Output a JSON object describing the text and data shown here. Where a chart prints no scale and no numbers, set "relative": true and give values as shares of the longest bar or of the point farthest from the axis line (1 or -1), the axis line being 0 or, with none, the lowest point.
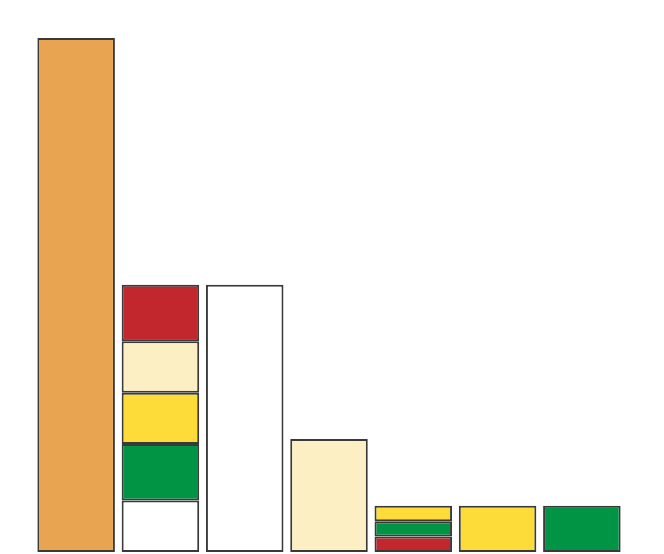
{
  "chart_data": {
    "type": "bar",
    "relative": true,
    "stacked": true,
    "categories": [
      null,
      null,
      null,
      null,
      null,
      null,
      null
    ],
    "series": [
      {
        "color": "#e8a450",
        "values": [
          1,
          null,
          null,
          null,
          null,
          null,
          null
        ]
      },
      {
        "color": "#ffffff",
        "values": [
          null,
          0.1,
          0.52,
          null,
          null,
          null,
          null
        ]
      },
      {
        "color": "#c1272d",
        "values": [
          null,
          null,
          null,
          null,
          0.03,
          null,
          null
        ]
      },
      {
        "color": "#009444",
        "values": [
          null,
          0.11,
          null,
          null,
          0.03,
          null,
          0.09
        ]
      },
      {
        "color": "#fddc3a",
        "values": [
          null,
          0.1,
          null,
          null,
          0.03,
          0.09,
          null
        ]
      },
      {
        "color": "#fdefc4",
        "values": [
          null,
          0.1,
          null,
          0.22,
          null,
          null,
          null
        ]
      },
      {
        "color": "#c1272d",
        "values": [
          null,
          0.11,
          null,
          null,
          null,
          null,
          null
        ]
      }
    ]
  }
}
